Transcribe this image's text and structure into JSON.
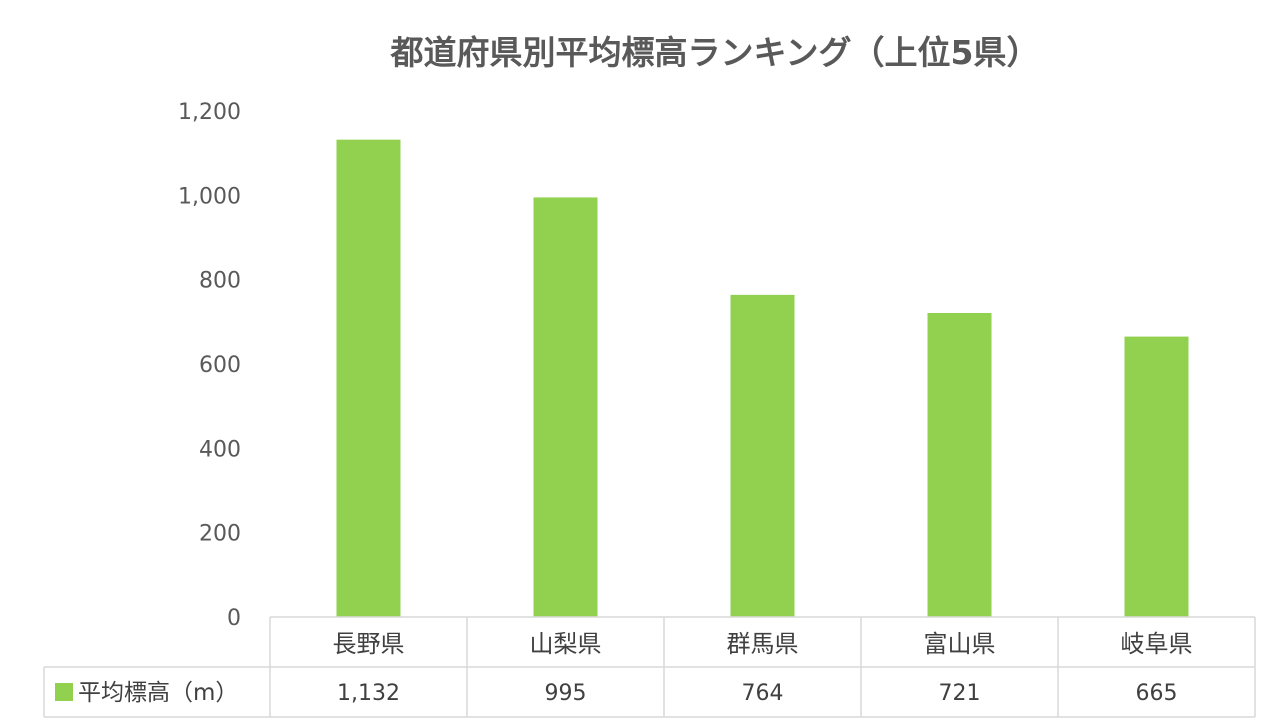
{
  "chart_data": {
    "type": "bar",
    "title": "都道府県別平均標高ランキング（上位5県）",
    "categories": [
      "長野県",
      "山梨県",
      "群馬県",
      "富山県",
      "岐阜県"
    ],
    "series": [
      {
        "name": "平均標高（m）",
        "values": [
          1132,
          995,
          764,
          721,
          665
        ]
      }
    ],
    "value_labels": [
      "1,132",
      "995",
      "764",
      "721",
      "665"
    ],
    "ylim": [
      0,
      1200
    ],
    "yticks": [
      0,
      200,
      400,
      600,
      800,
      1000,
      1200
    ],
    "ytick_labels": [
      "0",
      "200",
      "400",
      "600",
      "800",
      "1,000",
      "1,200"
    ],
    "data_table": true,
    "bar_color": "#92D050",
    "grid": false
  }
}
